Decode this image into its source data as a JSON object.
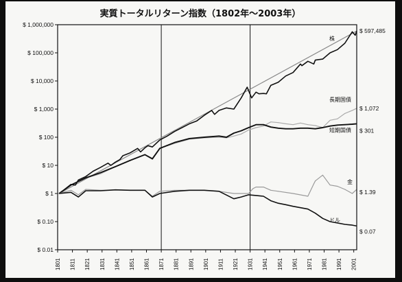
{
  "chart_data": {
    "type": "line",
    "title": "実質トータルリターン指数（1802年〜2003年）",
    "xlabel": "",
    "ylabel": "",
    "y_scale": "log",
    "ylim": [
      0.01,
      1000000
    ],
    "xlim": [
      1801,
      2003
    ],
    "y_ticks": [
      {
        "value": 1000000,
        "label": "$ 1,000,000"
      },
      {
        "value": 100000,
        "label": "$ 100,000"
      },
      {
        "value": 10000,
        "label": "$ 10,000"
      },
      {
        "value": 1000,
        "label": "$ 1,000"
      },
      {
        "value": 100,
        "label": "$ 100"
      },
      {
        "value": 10,
        "label": "$ 10"
      },
      {
        "value": 1,
        "label": "$ 1"
      },
      {
        "value": 0.1,
        "label": "$ 0.10"
      },
      {
        "value": 0.01,
        "label": "$ 0.01"
      }
    ],
    "x_ticks": [
      "1801",
      "1811",
      "1821",
      "1831",
      "1841",
      "1851",
      "1861",
      "1871",
      "1881",
      "1891",
      "1901",
      "1911",
      "1921",
      "1931",
      "1941",
      "1951",
      "1961",
      "1971",
      "1981",
      "1991",
      "2001"
    ],
    "vertical_gridlines": [
      1871,
      1931
    ],
    "grid": false,
    "series": [
      {
        "name": "株",
        "color": "#111111",
        "width": 1.6,
        "end_label": "$ 597,485",
        "x": [
          1802,
          1805,
          1810,
          1813,
          1815,
          1820,
          1825,
          1830,
          1835,
          1837,
          1840,
          1843,
          1845,
          1850,
          1855,
          1857,
          1860,
          1862,
          1865,
          1870,
          1875,
          1880,
          1885,
          1890,
          1895,
          1900,
          1905,
          1907,
          1910,
          1915,
          1920,
          1925,
          1929,
          1932,
          1935,
          1937,
          1940,
          1942,
          1945,
          1950,
          1955,
          1960,
          1965,
          1966,
          1970,
          1974,
          1975,
          1980,
          1985,
          1990,
          1995,
          2000,
          2002,
          2003
        ],
        "y": [
          1,
          1.3,
          2.1,
          2.0,
          3.0,
          4.0,
          6.2,
          8.5,
          12,
          10,
          13,
          16,
          22,
          28,
          40,
          30,
          42,
          50,
          45,
          80,
          110,
          160,
          220,
          300,
          380,
          600,
          900,
          650,
          900,
          1100,
          1000,
          2500,
          6000,
          2500,
          4000,
          3500,
          3600,
          3500,
          7000,
          9000,
          15000,
          20000,
          40000,
          35000,
          50000,
          40000,
          55000,
          60000,
          100000,
          130000,
          220000,
          560000,
          420000,
          597485
        ]
      },
      {
        "name": "長期国債",
        "color": "#aaaaaa",
        "width": 1.2,
        "end_label": "$ 1,072",
        "x": [
          1802,
          1810,
          1820,
          1830,
          1840,
          1850,
          1860,
          1865,
          1870,
          1880,
          1890,
          1900,
          1910,
          1915,
          1920,
          1925,
          1930,
          1935,
          1940,
          1945,
          1950,
          1955,
          1960,
          1965,
          1970,
          1975,
          1980,
          1985,
          1990,
          1995,
          2000,
          2003
        ],
        "y": [
          1,
          2,
          3.5,
          5,
          9,
          15,
          24,
          18,
          40,
          60,
          85,
          95,
          100,
          95,
          110,
          130,
          180,
          220,
          250,
          350,
          330,
          300,
          280,
          320,
          280,
          260,
          220,
          400,
          450,
          700,
          900,
          1072
        ]
      },
      {
        "name": "短期国債",
        "color": "#111111",
        "width": 1.9,
        "end_label": "$ 301",
        "x": [
          1802,
          1810,
          1820,
          1830,
          1840,
          1850,
          1860,
          1865,
          1870,
          1880,
          1890,
          1900,
          1910,
          1915,
          1920,
          1925,
          1930,
          1935,
          1940,
          1945,
          1950,
          1955,
          1960,
          1965,
          1970,
          1975,
          1980,
          1985,
          1990,
          1995,
          2000,
          2003
        ],
        "y": [
          1,
          2,
          3.6,
          5.5,
          9,
          15,
          24,
          17,
          40,
          65,
          90,
          100,
          110,
          100,
          140,
          170,
          220,
          280,
          280,
          230,
          210,
          200,
          200,
          210,
          210,
          200,
          220,
          250,
          270,
          280,
          290,
          301
        ]
      },
      {
        "name": "金",
        "color": "#9a9a9a",
        "width": 1.2,
        "end_label": "$ 1.39",
        "x": [
          1802,
          1810,
          1815,
          1820,
          1830,
          1840,
          1850,
          1860,
          1865,
          1870,
          1880,
          1890,
          1900,
          1910,
          1920,
          1930,
          1933,
          1935,
          1940,
          1945,
          1950,
          1960,
          1970,
          1974,
          1975,
          1980,
          1985,
          1990,
          1995,
          2000,
          2003
        ],
        "y": [
          1,
          1.3,
          0.9,
          1.4,
          1.3,
          1.35,
          1.3,
          1.3,
          0.8,
          1.2,
          1.3,
          1.3,
          1.3,
          1.2,
          1.0,
          1.0,
          1.5,
          1.7,
          1.7,
          1.3,
          1.2,
          1.0,
          0.8,
          2.2,
          2.8,
          4.5,
          2.0,
          1.8,
          1.4,
          1.0,
          1.39
        ]
      },
      {
        "name": "ドル",
        "color": "#111111",
        "width": 1.6,
        "end_label": "$ 0.07",
        "x": [
          1802,
          1810,
          1815,
          1820,
          1830,
          1840,
          1850,
          1860,
          1865,
          1870,
          1880,
          1890,
          1900,
          1910,
          1920,
          1925,
          1930,
          1935,
          1940,
          1945,
          1950,
          1955,
          1960,
          1970,
          1975,
          1980,
          1985,
          1990,
          1995,
          2000,
          2003
        ],
        "y": [
          1,
          1.1,
          0.75,
          1.25,
          1.25,
          1.35,
          1.3,
          1.3,
          0.75,
          1.0,
          1.2,
          1.3,
          1.3,
          1.2,
          0.65,
          0.75,
          0.9,
          0.85,
          0.8,
          0.55,
          0.45,
          0.4,
          0.35,
          0.28,
          0.2,
          0.13,
          0.1,
          0.09,
          0.08,
          0.075,
          0.07
        ]
      }
    ],
    "trend_line": {
      "color": "#888888",
      "x": [
        1802,
        2003
      ],
      "y": [
        1,
        597485
      ]
    }
  }
}
